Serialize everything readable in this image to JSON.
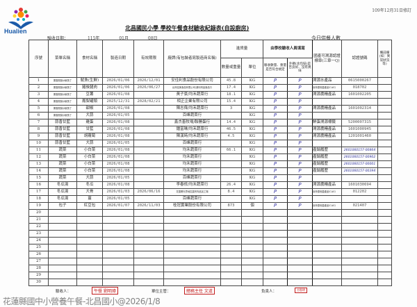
{
  "header": {
    "logo_text": "Hualien",
    "revised": "109年12月31日修訂",
    "title": "北昌國民小學 學校午餐食材驗收紀錄表(自設廚房)",
    "date_label": "驗收日期：",
    "year": "115年",
    "month": "01月",
    "day": "08日",
    "servings_label": "今日供餐人數"
  },
  "columns": {
    "no": "序號",
    "menu": "菜單名稱",
    "ingredient": "食材名稱",
    "mfg": "製造日期",
    "exp": "有效期限",
    "brand": "廠牌(有包裝者寫製造商名稱)",
    "qty_group": "進貨量",
    "qty": "數量或重量",
    "unit": "單位",
    "school_group": "由學校驗收人員填寫",
    "check_qty": "驗收數量、重量是否符合規定",
    "check_pack": "外觀(含包裝)是否良好、沒有異味",
    "cert_label": "國產可溯源認證標章(三章一Q)",
    "cert_no": "認證號碼",
    "notes": "備註欄(如：異常狀況等)"
  },
  "rows": [
    {
      "no": "1",
      "menu": "果香鳳梨炒魷魚丁",
      "ingredient": "魷魚(生鮮)",
      "mfg": "2026/01/06",
      "exp": "2026/12/01",
      "brand": "安佳利食品股份有限公司",
      "qty": "45.8",
      "unit": "KG",
      "c1": "P",
      "c2": "P",
      "cert": "溯源水產品",
      "certno": "0615000267"
    },
    {
      "no": "2",
      "menu": "果香鳳梨炒魷魚丁",
      "ingredient": "豬後腿肉",
      "mfg": "2026/01/06",
      "exp": "2026/06/27",
      "brand": "台灣佳美食品有限公司/源利肉品食品行",
      "qty": "17.4",
      "unit": "KG",
      "c1": "P",
      "c2": "P",
      "cert": "臺灣優良農產品(CAS)",
      "certno": "018702"
    },
    {
      "no": "3",
      "menu": "果香鳳梨炒魷魚丁",
      "ingredient": "豆薯",
      "mfg": "2026/01/08",
      "exp": "",
      "brand": "黃子豪/均禾蔬菜行",
      "qty": "18.1",
      "unit": "KG",
      "c1": "P",
      "c2": "P",
      "cert": "溯源農糧產品",
      "certno": "1601002205"
    },
    {
      "no": "4",
      "menu": "果香鳳梨炒魷魚丁",
      "ingredient": "鳳梨罐頭",
      "mfg": "2025/12/31",
      "exp": "2028/02/21",
      "brand": "相正企業有限公司",
      "qty": "15.4",
      "unit": "KG",
      "c1": "P",
      "c2": "P",
      "cert": "",
      "certno": ""
    },
    {
      "no": "5",
      "menu": "果香鳳梨炒魷魚丁",
      "ingredient": "甜椒",
      "mfg": "2026/01/08",
      "exp": "",
      "brand": "陳志偉/均禾蔬菜行",
      "qty": "3",
      "unit": "KG",
      "c1": "P",
      "c2": "P",
      "cert": "溯源農糧產品",
      "certno": "1601002314"
    },
    {
      "no": "6",
      "menu": "果香鳳梨炒魷魚丁",
      "ingredient": "大蒜",
      "mfg": "2026/01/05",
      "exp": "",
      "brand": "百峰蔬菜行",
      "qty": "",
      "unit": "KG",
      "c1": "P",
      "c2": "P",
      "cert": "",
      "certno": ""
    },
    {
      "no": "7",
      "menu": "蒜香甘藍",
      "ingredient": "雞蛋",
      "mfg": "2026/01/08",
      "exp": "",
      "brand": "鑫杰畜牧場/聯勝蛋行",
      "qty": "14.4",
      "unit": "KG",
      "c1": "P",
      "c2": "P",
      "cert": "鮮蛋溯源標籤",
      "certno": "5200007315"
    },
    {
      "no": "8",
      "menu": "蒜香甘藍",
      "ingredient": "甘藍",
      "mfg": "2026/01/08",
      "exp": "",
      "brand": "鍾富琳/均禾蔬菜行",
      "qty": "46.5",
      "unit": "KG",
      "c1": "P",
      "c2": "P",
      "cert": "溯源農糧產品",
      "certno": "1601000945"
    },
    {
      "no": "9",
      "menu": "蒜香甘藍",
      "ingredient": "胡蘿蔔",
      "mfg": "2026/01/08",
      "exp": "",
      "brand": "陳漢時/均禾蔬菜行",
      "qty": "4.5",
      "unit": "KG",
      "c1": "P",
      "c2": "P",
      "cert": "溯源農糧產品",
      "certno": "1201001460"
    },
    {
      "no": "10",
      "menu": "蒜香甘藍",
      "ingredient": "大蒜",
      "mfg": "2026/01/05",
      "exp": "",
      "brand": "百峰蔬菜行",
      "qty": "",
      "unit": "KG",
      "c1": "P",
      "c2": "P",
      "cert": "",
      "certno": ""
    },
    {
      "no": "11",
      "menu": "蔬菜",
      "ingredient": "小白菜",
      "mfg": "2026/01/08",
      "exp": "",
      "brand": "均禾蔬菜行",
      "qty": "66.1",
      "unit": "KG",
      "c1": "P",
      "c2": "P",
      "cert": "產銷履歷",
      "certno": "",
      "hand": "2601060157-00864"
    },
    {
      "no": "12",
      "menu": "蔬菜",
      "ingredient": "小白菜",
      "mfg": "2026/01/08",
      "exp": "",
      "brand": "均禾蔬菜行",
      "qty": "",
      "unit": "KG",
      "c1": "P",
      "c2": "P",
      "cert": "產銷履歷",
      "certno": "",
      "hand": "2601060157-00902"
    },
    {
      "no": "13",
      "menu": "蔬菜",
      "ingredient": "小白菜",
      "mfg": "2026/01/08",
      "exp": "",
      "brand": "均禾蔬菜行",
      "qty": "",
      "unit": "KG",
      "c1": "P",
      "c2": "P",
      "cert": "產銷履歷",
      "certno": "",
      "hand": "2601060157-00001"
    },
    {
      "no": "14",
      "menu": "蔬菜",
      "ingredient": "小白菜",
      "mfg": "2026/01/08",
      "exp": "",
      "brand": "均禾蔬菜行",
      "qty": "",
      "unit": "KG",
      "c1": "P",
      "c2": "P",
      "cert": "產銷履歷",
      "certno": "",
      "hand": "2601060157-00394"
    },
    {
      "no": "15",
      "menu": "蔬菜",
      "ingredient": "大蒜",
      "mfg": "2026/01/05",
      "exp": "",
      "brand": "百峰蔬菜行",
      "qty": "",
      "unit": "KG",
      "c1": "P",
      "c2": "P",
      "cert": "",
      "certno": ""
    },
    {
      "no": "16",
      "menu": "冬瓜湯",
      "ingredient": "冬瓜",
      "mfg": "2026/01/08",
      "exp": "",
      "brand": "李春修/均禾蔬菜行",
      "qty": "26.4",
      "unit": "KG",
      "c1": "P",
      "c2": "P",
      "cert": "溯源農糧產品",
      "certno": "1601030694"
    },
    {
      "no": "17",
      "menu": "冬瓜湯",
      "ingredient": "大骨",
      "mfg": "2026/01/03",
      "exp": "2026/06/16",
      "brand": "花蓮縣光豐地區農會肉品加工場",
      "qty": "8.4",
      "unit": "KG",
      "c1": "P",
      "c2": "P",
      "cert": "臺灣優良農產品(CAS)",
      "certno": "012202"
    },
    {
      "no": "18",
      "menu": "冬瓜湯",
      "ingredient": "薑",
      "mfg": "2026/01/05",
      "exp": "",
      "brand": "百峰蔬菜行",
      "qty": "",
      "unit": "KG",
      "c1": "P",
      "c2": "P",
      "cert": "",
      "certno": ""
    },
    {
      "no": "19",
      "menu": "包子",
      "ingredient": "紅豆包",
      "mfg": "2026/01/07",
      "exp": "2026/11/03",
      "brand": "桂冠實業股份有限公司",
      "qty": "873",
      "unit": "個",
      "c1": "P",
      "c2": "P",
      "cert": "臺灣優良農產品(CAS)",
      "certno": "021407"
    },
    {
      "no": "20"
    },
    {
      "no": "21"
    },
    {
      "no": "22"
    },
    {
      "no": "23"
    },
    {
      "no": "24"
    },
    {
      "no": "25"
    },
    {
      "no": "26"
    },
    {
      "no": "27"
    },
    {
      "no": "28"
    },
    {
      "no": "29"
    },
    {
      "no": "30"
    }
  ],
  "footer": {
    "inspector_label": "驗收人：",
    "inspector_stamp": "午餐 劉明璋",
    "supervisor_label": "單位主管：",
    "supervisor_stamp": "總務主任 文道",
    "responsible_label": "負責人：",
    "responsible_stamp": "方智明"
  },
  "watermark": "花蓮縣國中小營養午餐-北昌國小@2026/1/8",
  "colors": {
    "ink": "#3b3aa8",
    "stamp": "#c21b1b",
    "logo": "#1a5aa8"
  }
}
